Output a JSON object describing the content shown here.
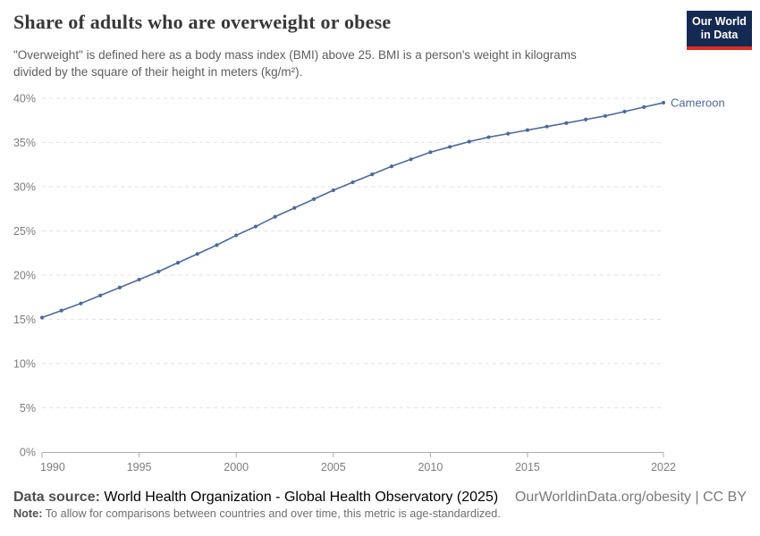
{
  "header": {
    "title": "Share of adults who are overweight or obese",
    "subtitle_lines": [
      "\"Overweight\" is defined here as a body mass index (BMI) above 25. BMI is a person's weight in kilograms",
      "divided by the square of their height in meters (kg/m²)."
    ],
    "logo": {
      "line1": "Our World",
      "line2": "in Data",
      "bg_color": "#152a52",
      "stripe_color": "#d93025"
    }
  },
  "chart_data": {
    "type": "line",
    "title": "Share of adults who are overweight or obese",
    "xlabel": "",
    "ylabel": "",
    "xlim": [
      1990,
      2022
    ],
    "ylim": [
      0,
      40
    ],
    "yticks": [
      0,
      5,
      10,
      15,
      20,
      25,
      30,
      35,
      40
    ],
    "ytick_suffix": "%",
    "xticks": [
      1990,
      1995,
      2000,
      2005,
      2010,
      2015,
      2022
    ],
    "grid": "horizontal-dashed",
    "legend_position": "end-of-line",
    "series": [
      {
        "name": "Cameroon",
        "color": "#4c6a9c",
        "x": [
          1990,
          1991,
          1992,
          1993,
          1994,
          1995,
          1996,
          1997,
          1998,
          1999,
          2000,
          2001,
          2002,
          2003,
          2004,
          2005,
          2006,
          2007,
          2008,
          2009,
          2010,
          2011,
          2012,
          2013,
          2014,
          2015,
          2016,
          2017,
          2018,
          2019,
          2020,
          2021,
          2022
        ],
        "values": [
          15.2,
          16.0,
          16.8,
          17.7,
          18.6,
          19.5,
          20.4,
          21.4,
          22.4,
          23.4,
          24.5,
          25.5,
          26.6,
          27.6,
          28.6,
          29.6,
          30.5,
          31.4,
          32.3,
          33.1,
          33.9,
          34.5,
          35.1,
          35.6,
          36.0,
          36.4,
          36.8,
          37.2,
          37.6,
          38.0,
          38.5,
          39.0,
          39.5
        ]
      }
    ]
  },
  "footer": {
    "datasource_label": "Data source:",
    "datasource_text": " World Health Organization - Global Health Observatory (2025)",
    "rights": "OurWorldinData.org/obesity | CC BY",
    "note_label": "Note:",
    "note_text": " To allow for comparisons between countries and over time, this metric is age-standardized."
  }
}
